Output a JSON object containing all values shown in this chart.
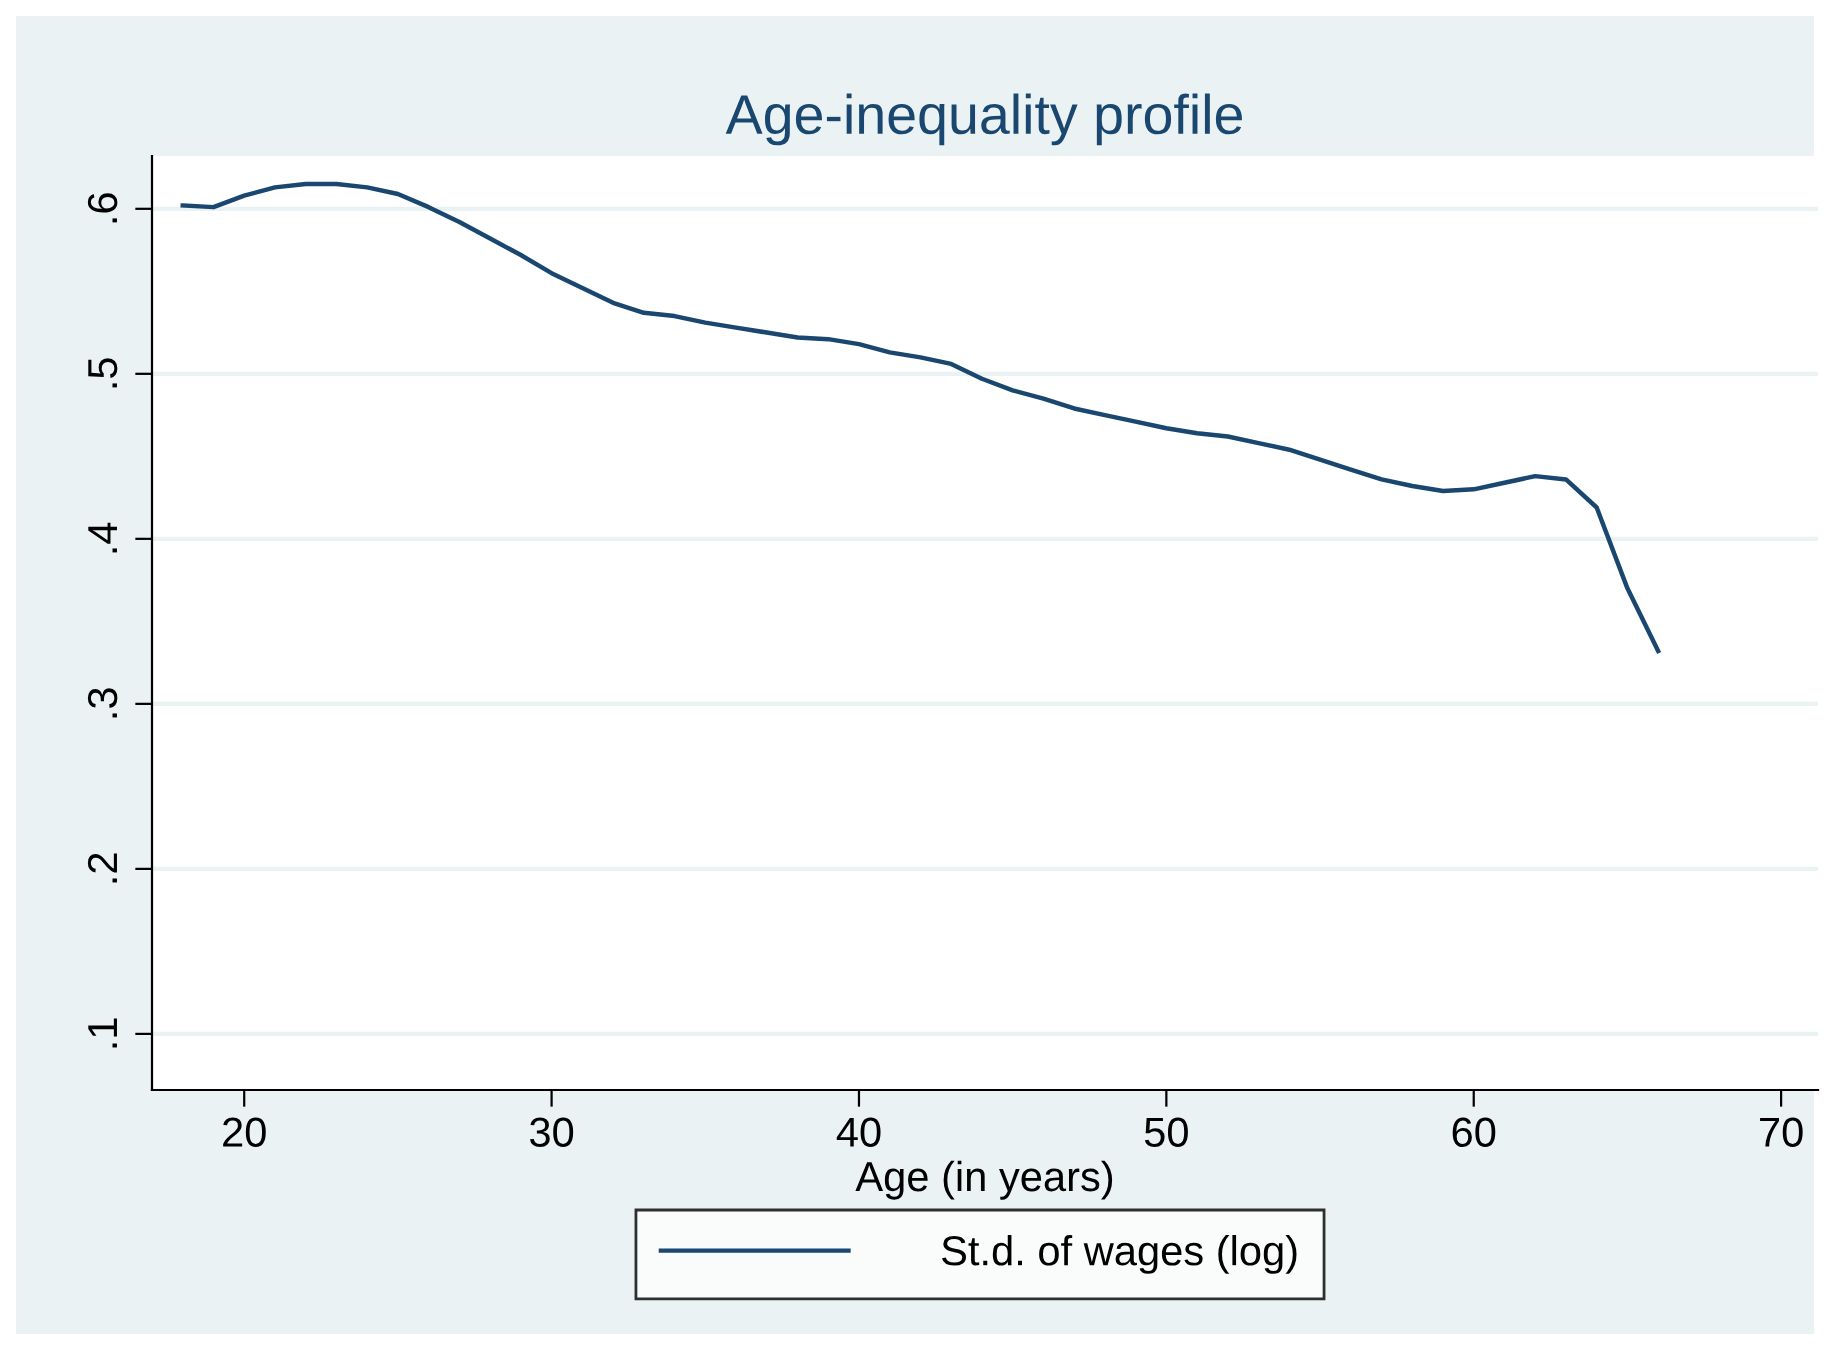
{
  "chart_data": {
    "type": "line",
    "title": "Age-inequality profile",
    "xlabel": "Age (in years)",
    "x": [
      18,
      19,
      20,
      21,
      22,
      23,
      24,
      25,
      26,
      27,
      28,
      29,
      30,
      31,
      32,
      33,
      34,
      35,
      36,
      37,
      38,
      39,
      40,
      41,
      42,
      43,
      44,
      45,
      46,
      47,
      48,
      49,
      50,
      51,
      52,
      53,
      54,
      55,
      56,
      57,
      58,
      59,
      60,
      61,
      62,
      63,
      64,
      65,
      66
    ],
    "series": [
      {
        "name": "St.d. of wages (log)",
        "color": "#1a476f",
        "values": [
          0.602,
          0.601,
          0.608,
          0.613,
          0.615,
          0.615,
          0.613,
          0.609,
          0.601,
          0.592,
          0.582,
          0.572,
          0.561,
          0.552,
          0.543,
          0.537,
          0.535,
          0.531,
          0.528,
          0.525,
          0.522,
          0.521,
          0.518,
          0.513,
          0.51,
          0.506,
          0.497,
          0.49,
          0.485,
          0.479,
          0.475,
          0.471,
          0.467,
          0.464,
          0.462,
          0.458,
          0.454,
          0.448,
          0.442,
          0.436,
          0.432,
          0.429,
          0.43,
          0.434,
          0.438,
          0.436,
          0.419,
          0.37,
          0.332
        ]
      }
    ],
    "xlim": [
      17,
      71.2
    ],
    "ylim": [
      0.066,
      0.632
    ],
    "xticks": [
      20,
      30,
      40,
      50,
      60,
      70
    ],
    "yticks": [
      {
        "value": 0.1,
        "label": ".1"
      },
      {
        "value": 0.2,
        "label": ".2"
      },
      {
        "value": 0.3,
        "label": ".3"
      },
      {
        "value": 0.4,
        "label": ".4"
      },
      {
        "value": 0.5,
        "label": ".5"
      },
      {
        "value": 0.6,
        "label": ".6"
      }
    ],
    "grid": "y",
    "legend": "bottom",
    "marker": "none",
    "line_style": "solid"
  }
}
